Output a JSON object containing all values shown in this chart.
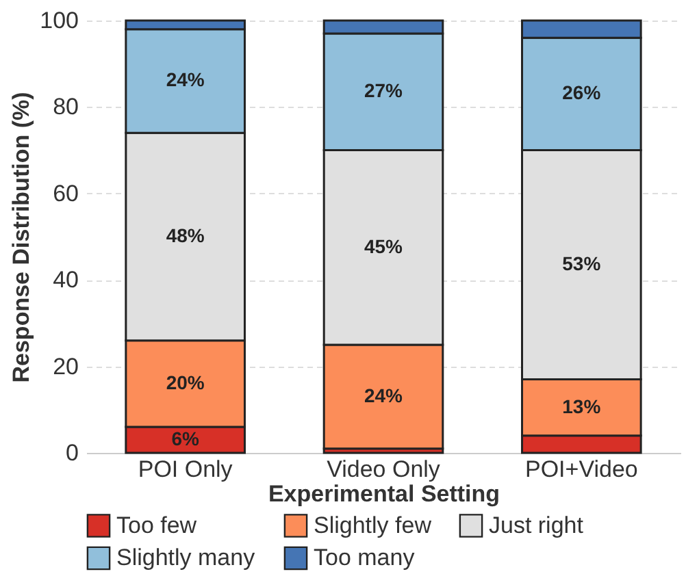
{
  "chart_data": {
    "type": "bar",
    "stacked": true,
    "xlabel": "Experimental Setting",
    "ylabel": "Response Distribution (%)",
    "categories": [
      "POI Only",
      "Video Only",
      "POI+Video"
    ],
    "ylim": [
      0,
      100
    ],
    "yticks": [
      0,
      20,
      40,
      60,
      80,
      100
    ],
    "grid": "y",
    "legend": "bottom",
    "series": [
      {
        "name": "Too few",
        "color": "#d73027",
        "values": [
          6,
          1,
          4
        ],
        "value_labels": [
          "6%",
          null,
          null
        ]
      },
      {
        "name": "Slightly few",
        "color": "#fc8d59",
        "values": [
          20,
          24,
          13
        ],
        "value_labels": [
          "20%",
          "24%",
          "13%"
        ]
      },
      {
        "name": "Just right",
        "color": "#e0e0e0",
        "values": [
          48,
          45,
          53
        ],
        "value_labels": [
          "48%",
          "45%",
          "53%"
        ]
      },
      {
        "name": "Slightly many",
        "color": "#91bfdb",
        "values": [
          24,
          27,
          26
        ],
        "value_labels": [
          "24%",
          "27%",
          "26%"
        ]
      },
      {
        "name": "Too many",
        "color": "#4575b4",
        "values": [
          2,
          3,
          4
        ],
        "value_labels": [
          null,
          null,
          null
        ]
      }
    ]
  }
}
